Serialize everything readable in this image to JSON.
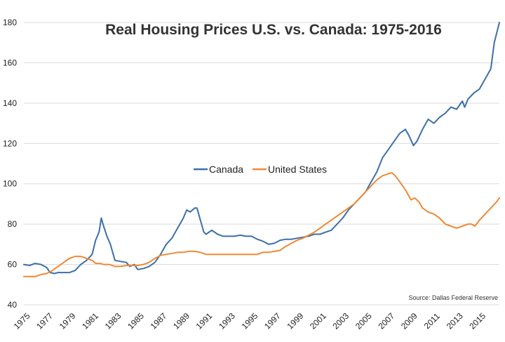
{
  "chart_data": {
    "type": "line",
    "title": "Real Housing Prices U.S. vs. Canada: 1975-2016",
    "source": "Source: Dallas Federal Reserve",
    "xlabel": "",
    "ylabel": "",
    "xlim": [
      1975,
      2016.75
    ],
    "ylim": [
      40,
      180
    ],
    "yticks": [
      40,
      60,
      80,
      100,
      120,
      140,
      160,
      180
    ],
    "xticks": [
      "1975",
      "1977",
      "1979",
      "1981",
      "1983",
      "1985",
      "1987",
      "1989",
      "1991",
      "1993",
      "1995",
      "1997",
      "1999",
      "2001",
      "2003",
      "2005",
      "2007",
      "2009",
      "2011",
      "2013",
      "2015"
    ],
    "grid": "horizontal",
    "legend_position": "center",
    "colors": {
      "canada": "#3d6fa8",
      "us": "#ee8a35",
      "grid": "#d9d9d9"
    },
    "series": [
      {
        "name": "Canada",
        "color": "#3d6fa8",
        "points": [
          [
            1975.0,
            60
          ],
          [
            1975.5,
            59.5
          ],
          [
            1976.0,
            60.5
          ],
          [
            1976.5,
            60
          ],
          [
            1977.0,
            58.5
          ],
          [
            1977.3,
            56
          ],
          [
            1977.7,
            55.5
          ],
          [
            1978.0,
            56
          ],
          [
            1978.5,
            56
          ],
          [
            1979.0,
            56
          ],
          [
            1979.5,
            57
          ],
          [
            1980.0,
            60
          ],
          [
            1980.5,
            62
          ],
          [
            1981.0,
            65
          ],
          [
            1981.3,
            72
          ],
          [
            1981.6,
            76
          ],
          [
            1981.8,
            83
          ],
          [
            1982.0,
            79
          ],
          [
            1982.3,
            74
          ],
          [
            1982.6,
            70
          ],
          [
            1983.0,
            62
          ],
          [
            1983.5,
            61.5
          ],
          [
            1984.0,
            61
          ],
          [
            1984.3,
            59
          ],
          [
            1984.7,
            60
          ],
          [
            1985.0,
            57.5
          ],
          [
            1985.5,
            58
          ],
          [
            1986.0,
            59
          ],
          [
            1986.5,
            61
          ],
          [
            1987.0,
            65
          ],
          [
            1987.5,
            70
          ],
          [
            1988.0,
            73
          ],
          [
            1988.5,
            78
          ],
          [
            1989.0,
            83
          ],
          [
            1989.3,
            87
          ],
          [
            1989.6,
            86
          ],
          [
            1990.0,
            88
          ],
          [
            1990.2,
            88
          ],
          [
            1990.5,
            82
          ],
          [
            1990.8,
            76
          ],
          [
            1991.0,
            75
          ],
          [
            1991.5,
            77
          ],
          [
            1992.0,
            75
          ],
          [
            1992.5,
            74
          ],
          [
            1993.0,
            74
          ],
          [
            1993.5,
            74
          ],
          [
            1994.0,
            74.5
          ],
          [
            1994.5,
            74
          ],
          [
            1995.0,
            74
          ],
          [
            1995.5,
            72.5
          ],
          [
            1996.0,
            71.5
          ],
          [
            1996.5,
            70
          ],
          [
            1997.0,
            70.5
          ],
          [
            1997.5,
            72
          ],
          [
            1998.0,
            72.5
          ],
          [
            1998.5,
            72.5
          ],
          [
            1999.0,
            73
          ],
          [
            1999.5,
            73.5
          ],
          [
            2000.0,
            74
          ],
          [
            2000.5,
            75
          ],
          [
            2001.0,
            75
          ],
          [
            2001.5,
            76
          ],
          [
            2002.0,
            77
          ],
          [
            2002.5,
            80
          ],
          [
            2003.0,
            83
          ],
          [
            2003.5,
            87
          ],
          [
            2004.0,
            90
          ],
          [
            2004.5,
            93
          ],
          [
            2005.0,
            96
          ],
          [
            2005.5,
            101
          ],
          [
            2006.0,
            106
          ],
          [
            2006.5,
            113
          ],
          [
            2007.0,
            117
          ],
          [
            2007.5,
            121
          ],
          [
            2008.0,
            125
          ],
          [
            2008.5,
            127
          ],
          [
            2008.8,
            124
          ],
          [
            2009.2,
            119
          ],
          [
            2009.5,
            121
          ],
          [
            2010.0,
            127
          ],
          [
            2010.5,
            132
          ],
          [
            2011.0,
            130
          ],
          [
            2011.5,
            133
          ],
          [
            2012.0,
            135
          ],
          [
            2012.5,
            138
          ],
          [
            2013.0,
            137
          ],
          [
            2013.5,
            141
          ],
          [
            2013.7,
            138
          ],
          [
            2014.0,
            142
          ],
          [
            2014.5,
            145
          ],
          [
            2015.0,
            147
          ],
          [
            2015.5,
            152
          ],
          [
            2016.0,
            157
          ],
          [
            2016.3,
            170
          ],
          [
            2016.75,
            180
          ]
        ]
      },
      {
        "name": "United States",
        "color": "#ee8a35",
        "points": [
          [
            1975.0,
            54
          ],
          [
            1975.5,
            54
          ],
          [
            1976.0,
            54
          ],
          [
            1976.5,
            55
          ],
          [
            1977.0,
            55.5
          ],
          [
            1977.5,
            57
          ],
          [
            1978.0,
            59
          ],
          [
            1978.5,
            61
          ],
          [
            1979.0,
            63
          ],
          [
            1979.5,
            64
          ],
          [
            1980.0,
            64
          ],
          [
            1980.5,
            63
          ],
          [
            1981.0,
            62
          ],
          [
            1981.3,
            60.5
          ],
          [
            1981.7,
            60.5
          ],
          [
            1982.0,
            60
          ],
          [
            1982.5,
            60
          ],
          [
            1983.0,
            59
          ],
          [
            1983.5,
            59
          ],
          [
            1984.0,
            59.5
          ],
          [
            1984.5,
            59.5
          ],
          [
            1985.0,
            59.5
          ],
          [
            1985.5,
            60
          ],
          [
            1986.0,
            61
          ],
          [
            1986.5,
            63
          ],
          [
            1987.0,
            64.5
          ],
          [
            1987.5,
            65
          ],
          [
            1988.0,
            65.5
          ],
          [
            1988.5,
            66
          ],
          [
            1989.0,
            66
          ],
          [
            1989.5,
            66.5
          ],
          [
            1990.0,
            66.5
          ],
          [
            1990.5,
            66
          ],
          [
            1991.0,
            65
          ],
          [
            1991.5,
            65
          ],
          [
            1992.0,
            65
          ],
          [
            1992.5,
            65
          ],
          [
            1993.0,
            65
          ],
          [
            1993.5,
            65
          ],
          [
            1994.0,
            65
          ],
          [
            1994.5,
            65
          ],
          [
            1995.0,
            65
          ],
          [
            1995.5,
            65
          ],
          [
            1996.0,
            66
          ],
          [
            1996.5,
            66
          ],
          [
            1997.0,
            66.5
          ],
          [
            1997.5,
            67
          ],
          [
            1998.0,
            69
          ],
          [
            1998.5,
            70.5
          ],
          [
            1999.0,
            72
          ],
          [
            1999.5,
            73
          ],
          [
            2000.0,
            74.5
          ],
          [
            2000.5,
            76
          ],
          [
            2001.0,
            78
          ],
          [
            2001.5,
            80
          ],
          [
            2002.0,
            82
          ],
          [
            2002.5,
            84
          ],
          [
            2003.0,
            86
          ],
          [
            2003.5,
            88
          ],
          [
            2004.0,
            90
          ],
          [
            2004.5,
            93
          ],
          [
            2005.0,
            96
          ],
          [
            2005.5,
            99
          ],
          [
            2006.0,
            102
          ],
          [
            2006.5,
            104
          ],
          [
            2007.0,
            105
          ],
          [
            2007.3,
            105.5
          ],
          [
            2007.6,
            104
          ],
          [
            2008.0,
            101
          ],
          [
            2008.5,
            97
          ],
          [
            2009.0,
            92
          ],
          [
            2009.3,
            93
          ],
          [
            2009.7,
            91
          ],
          [
            2010.0,
            88
          ],
          [
            2010.5,
            86
          ],
          [
            2011.0,
            85
          ],
          [
            2011.5,
            83
          ],
          [
            2012.0,
            80
          ],
          [
            2012.5,
            79
          ],
          [
            2013.0,
            78
          ],
          [
            2013.5,
            79
          ],
          [
            2014.0,
            80
          ],
          [
            2014.3,
            80
          ],
          [
            2014.6,
            79
          ],
          [
            2015.0,
            82
          ],
          [
            2015.5,
            85
          ],
          [
            2016.0,
            88
          ],
          [
            2016.5,
            91
          ],
          [
            2016.75,
            93
          ]
        ]
      }
    ]
  }
}
